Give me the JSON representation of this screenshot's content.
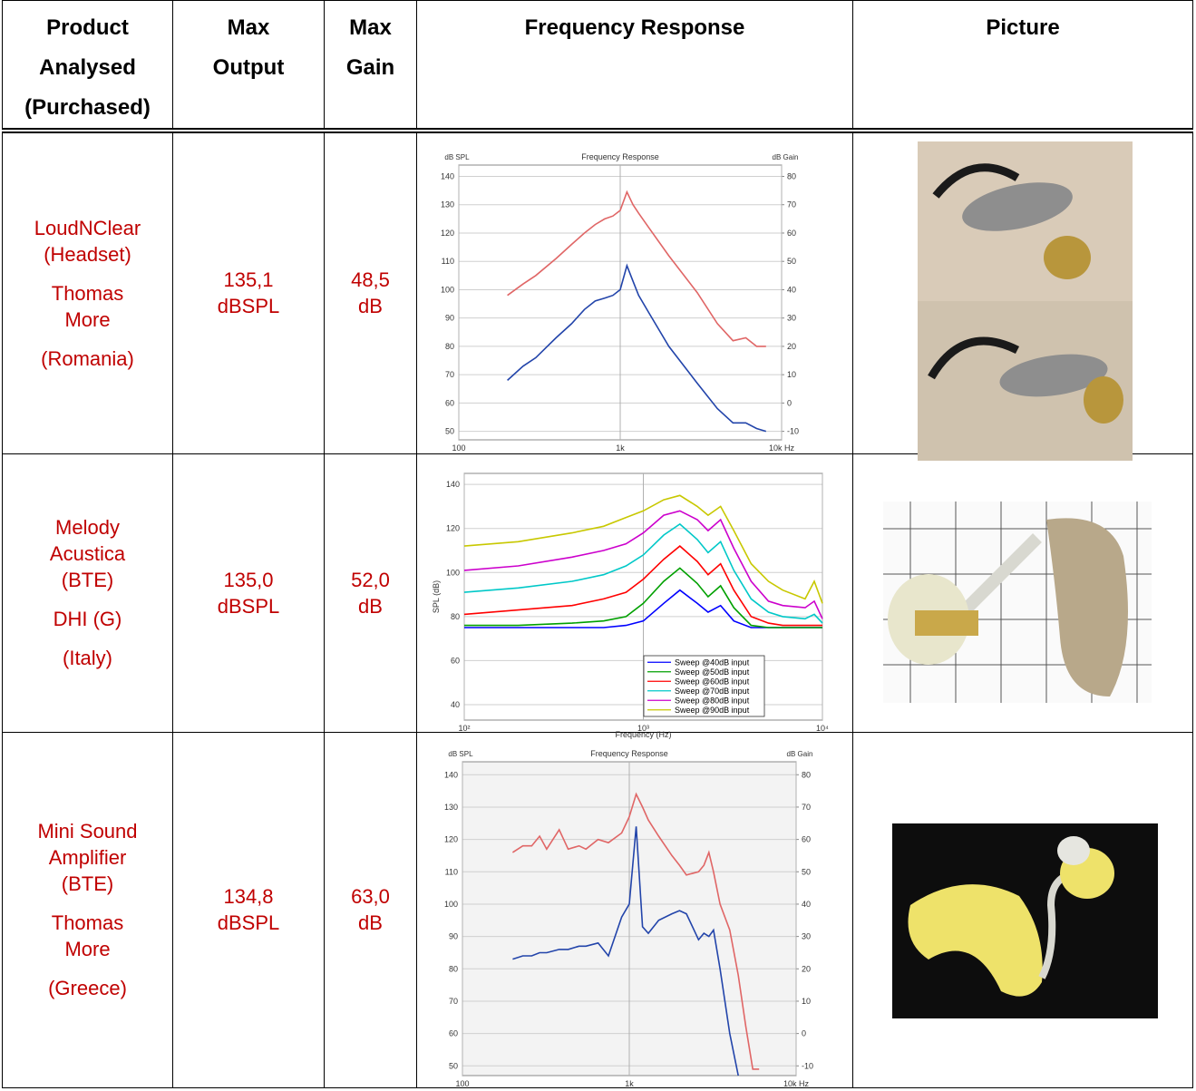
{
  "table": {
    "headers": [
      [
        "Product",
        "Analysed",
        "(Purchased)"
      ],
      [
        "Max",
        "Output"
      ],
      [
        "Max",
        "Gain"
      ],
      [
        "Frequency Response"
      ],
      [
        "Picture"
      ]
    ],
    "rows": [
      {
        "product": [
          [
            "LoudNClear",
            "(Headset)"
          ],
          [
            "Thomas",
            "More"
          ],
          [
            "(Romania)"
          ]
        ],
        "max_output": [
          "135,1",
          "dBSPL"
        ],
        "max_gain": [
          "48,5",
          "dB"
        ]
      },
      {
        "product": [
          [
            "Melody",
            "Acustica",
            "(BTE)"
          ],
          [
            "DHI (G)"
          ],
          [
            "(Italy)"
          ]
        ],
        "max_output": [
          "135,0",
          "dBSPL"
        ],
        "max_gain": [
          "52,0",
          "dB"
        ]
      },
      {
        "product": [
          [
            "Mini Sound",
            "Amplifier",
            "(BTE)"
          ],
          [
            "Thomas",
            "More"
          ],
          [
            "(Greece)"
          ]
        ],
        "max_output": [
          "134,8",
          "dBSPL"
        ],
        "max_gain": [
          "63,0",
          "dB"
        ]
      }
    ]
  },
  "chart_data": [
    {
      "type": "line",
      "title": "Frequency Response",
      "ylabel": "dB SPL",
      "y2label": "dB Gain",
      "log_x": true,
      "grid": true,
      "x": [
        200,
        250,
        300,
        400,
        500,
        600,
        700,
        800,
        900,
        1000,
        1100,
        1200,
        1300,
        1500,
        2000,
        3000,
        4000,
        5000,
        6000,
        7000,
        8000
      ],
      "series": [
        {
          "color": "#e06666",
          "values": [
            98,
            102,
            105,
            111,
            116,
            120,
            123,
            125,
            126,
            128,
            134.5,
            130,
            127,
            122,
            112,
            99,
            88,
            82,
            83,
            80,
            80
          ]
        },
        {
          "color": "#2244aa",
          "values": [
            68,
            73,
            76,
            83,
            88,
            93,
            96,
            97,
            98,
            100,
            108.5,
            103,
            98,
            92,
            80,
            67,
            58,
            53,
            53,
            51,
            50
          ]
        }
      ],
      "xlim": [
        100,
        10000
      ],
      "xticks": [
        {
          "value": 100,
          "label": "100"
        },
        {
          "value": 1000,
          "label": "1k"
        },
        {
          "value": 10000,
          "label": "10k Hz"
        }
      ],
      "ylim": [
        47,
        144
      ],
      "yticks": [
        50,
        60,
        70,
        80,
        90,
        100,
        110,
        120,
        130,
        140
      ],
      "y2lim": [
        -13,
        84
      ],
      "y2ticks": [
        -10,
        0,
        10,
        20,
        30,
        40,
        50,
        60,
        70,
        80
      ]
    },
    {
      "type": "line",
      "xlabel": "Frequency (Hz)",
      "ylabel": "SPL (dB)",
      "log_x": true,
      "grid": true,
      "legend": "lower right",
      "x": [
        100,
        200,
        400,
        600,
        800,
        1000,
        1300,
        1600,
        2000,
        2300,
        2700,
        3200,
        4000,
        5000,
        6000,
        8000,
        9000,
        10000
      ],
      "series": [
        {
          "name": "Sweep @40dB input",
          "color": "#0000ff",
          "values": [
            75,
            75,
            75,
            75,
            76,
            78,
            86,
            92,
            86,
            82,
            85,
            78,
            75,
            75,
            75,
            75,
            75,
            75
          ]
        },
        {
          "name": "Sweep @50dB input",
          "color": "#00a000",
          "values": [
            76,
            76,
            77,
            78,
            80,
            86,
            96,
            102,
            95,
            89,
            94,
            84,
            76,
            75,
            75,
            75,
            75,
            75
          ]
        },
        {
          "name": "Sweep @60dB input",
          "color": "#ff0000",
          "values": [
            81,
            83,
            85,
            88,
            91,
            97,
            106,
            112,
            105,
            99,
            104,
            92,
            80,
            77,
            76,
            76,
            76,
            76
          ]
        },
        {
          "name": "Sweep @70dB input",
          "color": "#00c8c8",
          "values": [
            91,
            93,
            96,
            99,
            103,
            108,
            117,
            122,
            115,
            109,
            114,
            101,
            88,
            82,
            80,
            79,
            81,
            77
          ]
        },
        {
          "name": "Sweep @80dB input",
          "color": "#cc00cc",
          "values": [
            101,
            103,
            107,
            110,
            113,
            118,
            126,
            128,
            124,
            119,
            124,
            111,
            96,
            87,
            85,
            84,
            87,
            79
          ]
        },
        {
          "name": "Sweep @90dB input",
          "color": "#c8c800",
          "values": [
            112,
            114,
            118,
            121,
            125,
            128,
            133,
            135,
            130,
            126,
            130,
            119,
            104,
            96,
            92,
            88,
            96,
            86
          ]
        }
      ],
      "xlim": [
        100,
        10000
      ],
      "xticks": [
        {
          "value": 100,
          "label": "10²"
        },
        {
          "value": 1000,
          "label": "10³"
        },
        {
          "value": 10000,
          "label": "10⁴"
        }
      ],
      "ylim": [
        33,
        145
      ],
      "yticks": [
        40,
        60,
        80,
        100,
        120,
        140
      ]
    },
    {
      "type": "line",
      "title": "Frequency Response",
      "ylabel": "dB SPL",
      "y2label": "dB Gain",
      "log_x": true,
      "grid": true,
      "x": [
        200,
        230,
        260,
        290,
        320,
        380,
        430,
        500,
        550,
        650,
        750,
        900,
        1000,
        1100,
        1200,
        1300,
        1500,
        1800,
        2000,
        2200,
        2600,
        2800,
        3000,
        3200,
        3500,
        4000,
        4500,
        5000,
        5500,
        6000
      ],
      "series": [
        {
          "color": "#e06666",
          "values": [
            116,
            118,
            118,
            121,
            117,
            123,
            117,
            118,
            117,
            120,
            119,
            122,
            127,
            134,
            130,
            126,
            121,
            115,
            112,
            109,
            110,
            112,
            116,
            110,
            100,
            92,
            78,
            62,
            49,
            49
          ]
        },
        {
          "color": "#2244aa",
          "values": [
            83,
            84,
            84,
            85,
            85,
            86,
            86,
            87,
            87,
            88,
            84,
            96,
            100,
            124,
            93,
            91,
            95,
            97,
            98,
            97,
            89,
            91,
            90,
            92,
            80,
            60,
            47,
            null,
            null,
            null
          ]
        }
      ],
      "xlim": [
        100,
        10000
      ],
      "xticks": [
        {
          "value": 100,
          "label": "100"
        },
        {
          "value": 1000,
          "label": "1k"
        },
        {
          "value": 10000,
          "label": "10k Hz"
        }
      ],
      "ylim": [
        47,
        144
      ],
      "yticks": [
        50,
        60,
        70,
        80,
        90,
        100,
        110,
        120,
        130,
        140
      ],
      "y2lim": [
        -13,
        84
      ],
      "y2ticks": [
        -10,
        0,
        10,
        20,
        30,
        40,
        50,
        60,
        70,
        80
      ]
    }
  ]
}
